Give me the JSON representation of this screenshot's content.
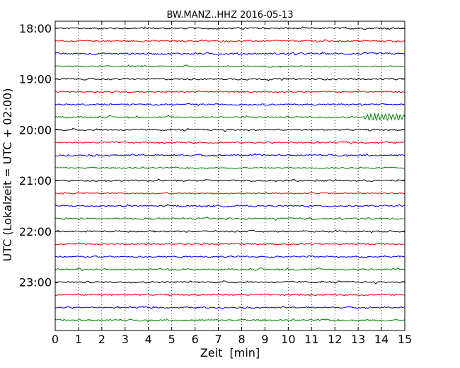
{
  "chart_data": {
    "type": "line",
    "title": "BW.MANZ..HHZ 2016-05-13",
    "xlabel": "Zeit  [min]",
    "ylabel": "UTC (Lokalzeit = UTC + 02:00)",
    "xlim": [
      0,
      15
    ],
    "x_ticks": [
      "0",
      "1",
      "2",
      "3",
      "4",
      "5",
      "6",
      "7",
      "8",
      "9",
      "10",
      "11",
      "12",
      "13",
      "14",
      "15"
    ],
    "y_ticks": [
      "18:00",
      "19:00",
      "20:00",
      "21:00",
      "22:00",
      "23:00"
    ],
    "grid": "vertical dotted",
    "trace_interval_minutes": 15,
    "start_time": "18:00",
    "trace_colors": [
      "#000000",
      "#ff0000",
      "#0000ff",
      "#008000"
    ],
    "series": [
      {
        "start": "18:00",
        "color": "#000000",
        "amp": 1.0,
        "event": null
      },
      {
        "start": "18:15",
        "color": "#ff0000",
        "amp": 1.0,
        "event": null
      },
      {
        "start": "18:30",
        "color": "#0000ff",
        "amp": 1.1,
        "event": null
      },
      {
        "start": "18:45",
        "color": "#008000",
        "amp": 0.9,
        "event": null
      },
      {
        "start": "19:00",
        "color": "#000000",
        "amp": 1.0,
        "event": null
      },
      {
        "start": "19:15",
        "color": "#ff0000",
        "amp": 0.9,
        "event": null
      },
      {
        "start": "19:30",
        "color": "#0000ff",
        "amp": 0.9,
        "event": null
      },
      {
        "start": "19:45",
        "color": "#008000",
        "amp": 1.0,
        "event": {
          "start_min": 13.1,
          "end_min": 15.0,
          "amplitude": 5.5
        }
      },
      {
        "start": "20:00",
        "color": "#000000",
        "amp": 1.0,
        "event": null
      },
      {
        "start": "20:15",
        "color": "#ff0000",
        "amp": 1.0,
        "event": null
      },
      {
        "start": "20:30",
        "color": "#0000ff",
        "amp": 1.0,
        "event": null
      },
      {
        "start": "20:45",
        "color": "#008000",
        "amp": 0.9,
        "event": null
      },
      {
        "start": "21:00",
        "color": "#000000",
        "amp": 1.0,
        "event": null
      },
      {
        "start": "21:15",
        "color": "#ff0000",
        "amp": 0.8,
        "event": null
      },
      {
        "start": "21:30",
        "color": "#0000ff",
        "amp": 1.0,
        "event": null
      },
      {
        "start": "21:45",
        "color": "#008000",
        "amp": 1.0,
        "event": null
      },
      {
        "start": "22:00",
        "color": "#000000",
        "amp": 1.0,
        "event": null
      },
      {
        "start": "22:15",
        "color": "#ff0000",
        "amp": 0.9,
        "event": null
      },
      {
        "start": "22:30",
        "color": "#0000ff",
        "amp": 0.9,
        "event": null
      },
      {
        "start": "22:45",
        "color": "#008000",
        "amp": 1.0,
        "event": null
      },
      {
        "start": "23:00",
        "color": "#000000",
        "amp": 1.0,
        "event": null
      },
      {
        "start": "23:15",
        "color": "#ff0000",
        "amp": 0.9,
        "event": null
      },
      {
        "start": "23:30",
        "color": "#0000ff",
        "amp": 0.9,
        "event": null
      },
      {
        "start": "23:45",
        "color": "#008000",
        "amp": 1.0,
        "event": null
      }
    ]
  }
}
